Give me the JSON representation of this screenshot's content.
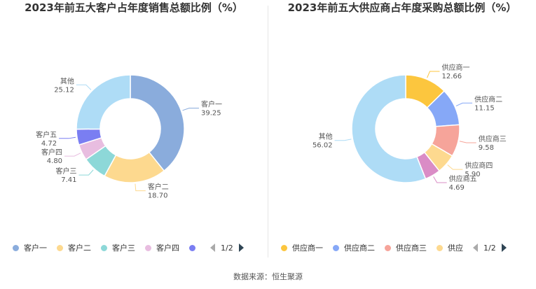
{
  "chart_data": [
    {
      "type": "pie",
      "title": "2023年前五大客户占年度销售总额比例（%）",
      "categories": [
        "客户一",
        "客户二",
        "客户三",
        "客户四",
        "客户五",
        "其他"
      ],
      "values": [
        39.25,
        18.7,
        7.41,
        4.8,
        4.72,
        25.12
      ],
      "value_labels": [
        "39.25",
        "18.70",
        "7.41",
        "4.80",
        "4.72",
        "25.12"
      ],
      "colors": [
        "#8aacdc",
        "#fdd98f",
        "#8dd8d8",
        "#e8bde0",
        "#7a7ef2",
        "#aedcf6"
      ],
      "legend_visible": [
        "客户一",
        "客户二",
        "客户三",
        "客户四"
      ],
      "legend_placement": "bottom",
      "pager": "1/2"
    },
    {
      "type": "pie",
      "title": "2023年前五大供应商占年度采购总额比例（%）",
      "categories": [
        "供应商一",
        "供应商二",
        "供应商三",
        "供应商四",
        "供应商五",
        "其他"
      ],
      "values": [
        12.66,
        11.15,
        9.58,
        5.9,
        4.69,
        56.02
      ],
      "value_labels": [
        "12.66",
        "11.15",
        "9.58",
        "5.90",
        "4.69",
        "56.02"
      ],
      "colors": [
        "#fcc63e",
        "#86a8f7",
        "#f6a49a",
        "#fdd98f",
        "#da8cc6",
        "#aedcf6"
      ],
      "legend_visible": [
        "供应商一",
        "供应商二",
        "供应商三",
        "供应"
      ],
      "legend_placement": "bottom",
      "pager": "1/2"
    }
  ],
  "footer": {
    "source": "数据来源：恒生聚源"
  }
}
